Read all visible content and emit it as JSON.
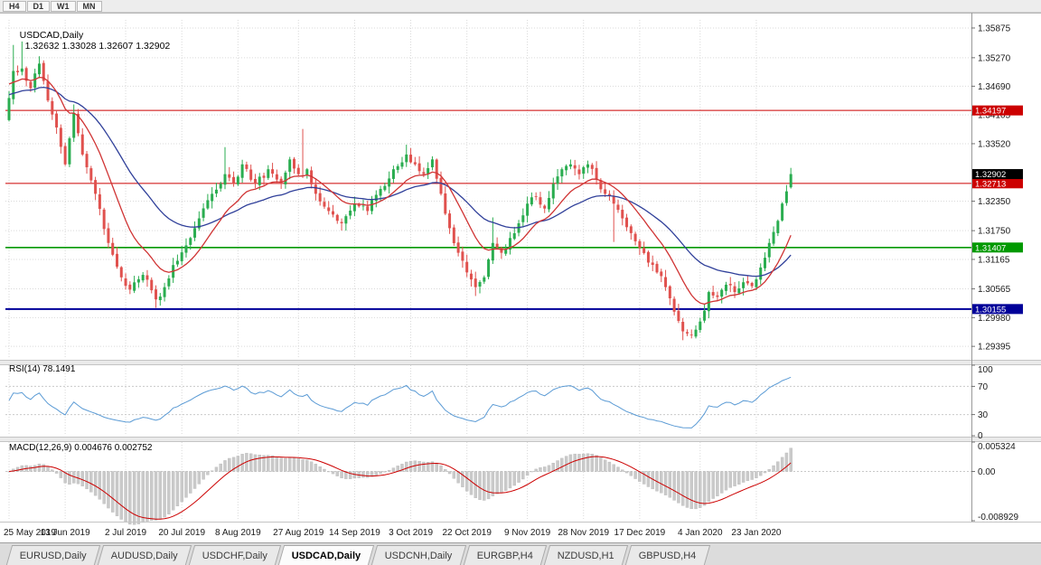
{
  "toolbar": {
    "timeframe_buttons": [
      "H4",
      "D1",
      "W1",
      "MN"
    ]
  },
  "main_chart": {
    "title_symbol": "USDCAD,Daily",
    "title_ohlc": "1.32632 1.33028 1.32607 1.32902",
    "price_axis_ticks": [
      "1.35875",
      "1.35270",
      "1.34690",
      "1.34105",
      "1.33520",
      "1.32350",
      "1.31750",
      "1.31165",
      "1.30565",
      "1.29980",
      "1.29395"
    ],
    "price_labels": [
      {
        "text": "1.34197",
        "color": "#cc0000",
        "type": "resistance-line"
      },
      {
        "text": "1.32713",
        "color": "#cc0000",
        "type": "resistance-line"
      },
      {
        "text": "1.31407",
        "color": "#009900",
        "type": "support-line"
      },
      {
        "text": "1.30155",
        "color": "#000099",
        "type": "support-line"
      },
      {
        "text": "1.32902",
        "color": "#000000",
        "type": "current-price"
      }
    ],
    "level_lines": [
      {
        "price": 1.34197,
        "color": "#cc0000",
        "width": 1
      },
      {
        "price": 1.32713,
        "color": "#cc0000",
        "width": 1
      },
      {
        "price": 1.31407,
        "color": "#009900",
        "width": 1.6
      },
      {
        "price": 1.30155,
        "color": "#000099",
        "width": 2
      }
    ],
    "date_axis": [
      "25 May 2019",
      "13 Jun 2019",
      "2 Jul 2019",
      "20 Jul 2019",
      "8 Aug 2019",
      "27 Aug 2019",
      "14 Sep 2019",
      "3 Oct 2019",
      "22 Oct 2019",
      "9 Nov 2019",
      "28 Nov 2019",
      "17 Dec 2019",
      "4 Jan 2020",
      "23 Jan 2020"
    ]
  },
  "rsi_panel": {
    "label": "RSI(14) 78.1491",
    "axis_ticks": [
      "100",
      "70",
      "30",
      "0"
    ],
    "last_value": 78.1491
  },
  "macd_panel": {
    "label": "MACD(12,26,9) 0.004676 0.002752",
    "axis_ticks": [
      "0.005324",
      "0.00",
      "-0.008929"
    ],
    "last_macd": 0.004676,
    "last_signal": 0.002752
  },
  "bottom_tabs": {
    "items": [
      "EURUSD,Daily",
      "AUDUSD,Daily",
      "USDCHF,Daily",
      "USDCAD,Daily",
      "USDCNH,Daily",
      "EURGBP,H4",
      "NZDUSD,H1",
      "GBPUSD,H4"
    ],
    "active": "USDCAD,Daily"
  },
  "chart_data": {
    "type": "candlestick",
    "symbol": "USDCAD",
    "timeframe": "Daily",
    "ohlc_last": {
      "open": 1.32632,
      "high": 1.33028,
      "low": 1.32607,
      "close": 1.32902
    },
    "visible_range": {
      "price_min": 1.2914,
      "price_max": 1.3604,
      "bars": 182
    },
    "date_tick_indices": [
      0,
      13,
      27,
      40,
      53,
      67,
      80,
      93,
      106,
      120,
      133,
      146,
      160,
      173
    ],
    "close_keyframes": [
      [
        0,
        1.3445
      ],
      [
        1,
        1.35
      ],
      [
        3,
        1.3505
      ],
      [
        5,
        1.3465
      ],
      [
        7,
        1.3515
      ],
      [
        9,
        1.344
      ],
      [
        11,
        1.3385
      ],
      [
        13,
        1.331
      ],
      [
        15,
        1.3415
      ],
      [
        17,
        1.333
      ],
      [
        20,
        1.325
      ],
      [
        23,
        1.315
      ],
      [
        26,
        1.308
      ],
      [
        28,
        1.3055
      ],
      [
        31,
        1.3085
      ],
      [
        34,
        1.3035
      ],
      [
        36,
        1.306
      ],
      [
        38,
        1.3105
      ],
      [
        41,
        1.3145
      ],
      [
        44,
        1.32
      ],
      [
        47,
        1.325
      ],
      [
        50,
        1.329
      ],
      [
        52,
        1.327
      ],
      [
        54,
        1.331
      ],
      [
        57,
        1.327
      ],
      [
        60,
        1.33
      ],
      [
        63,
        1.327
      ],
      [
        65,
        1.332
      ],
      [
        67,
        1.329
      ],
      [
        69,
        1.33
      ],
      [
        71,
        1.325
      ],
      [
        74,
        1.3215
      ],
      [
        77,
        1.319
      ],
      [
        80,
        1.323
      ],
      [
        83,
        1.3215
      ],
      [
        86,
        1.326
      ],
      [
        89,
        1.33
      ],
      [
        92,
        1.333
      ],
      [
        94,
        1.331
      ],
      [
        96,
        1.329
      ],
      [
        98,
        1.332
      ],
      [
        100,
        1.325
      ],
      [
        102,
        1.318
      ],
      [
        104,
        1.313
      ],
      [
        106,
        1.309
      ],
      [
        108,
        1.306
      ],
      [
        110,
        1.308
      ],
      [
        112,
        1.315
      ],
      [
        114,
        1.313
      ],
      [
        116,
        1.316
      ],
      [
        118,
        1.319
      ],
      [
        120,
        1.323
      ],
      [
        122,
        1.3245
      ],
      [
        124,
        1.322
      ],
      [
        126,
        1.327
      ],
      [
        128,
        1.33
      ],
      [
        130,
        1.331
      ],
      [
        132,
        1.329
      ],
      [
        134,
        1.331
      ],
      [
        136,
        1.328
      ],
      [
        138,
        1.325
      ],
      [
        140,
        1.323
      ],
      [
        142,
        1.32
      ],
      [
        144,
        1.317
      ],
      [
        146,
        1.314
      ],
      [
        148,
        1.311
      ],
      [
        150,
        1.309
      ],
      [
        152,
        1.306
      ],
      [
        154,
        1.301
      ],
      [
        156,
        1.297
      ],
      [
        158,
        1.2962
      ],
      [
        160,
        1.299
      ],
      [
        162,
        1.305
      ],
      [
        164,
        1.304
      ],
      [
        166,
        1.3065
      ],
      [
        168,
        1.305
      ],
      [
        170,
        1.307
      ],
      [
        172,
        1.3062
      ],
      [
        174,
        1.31
      ],
      [
        176,
        1.315
      ],
      [
        178,
        1.3195
      ],
      [
        180,
        1.3255
      ],
      [
        181,
        1.329
      ]
    ],
    "wick_extremes": [
      {
        "i": 1,
        "high": 1.3553
      },
      {
        "i": 3,
        "high": 1.356
      },
      {
        "i": 7,
        "high": 1.353
      },
      {
        "i": 15,
        "high": 1.3432
      },
      {
        "i": 34,
        "low": 1.3018
      },
      {
        "i": 50,
        "high": 1.3345
      },
      {
        "i": 68,
        "high": 1.3382
      },
      {
        "i": 92,
        "high": 1.335
      },
      {
        "i": 108,
        "low": 1.3042
      },
      {
        "i": 112,
        "high": 1.3202
      },
      {
        "i": 140,
        "low": 1.3152
      },
      {
        "i": 156,
        "low": 1.2952
      }
    ],
    "moving_averages": [
      {
        "name": "fast",
        "type": "ema",
        "period": 13,
        "color": "#d03434",
        "seed": 1.3478
      },
      {
        "name": "slow",
        "type": "ema",
        "period": 34,
        "color": "#30409a",
        "seed": 1.3452
      }
    ],
    "indicators": {
      "rsi": {
        "period": 14,
        "last": 78.1491,
        "levels": [
          70,
          30
        ],
        "range": [
          0,
          100
        ],
        "color": "#5b9bd5"
      },
      "macd": {
        "fast": 12,
        "slow": 26,
        "signal": 9,
        "last_macd": 0.004676,
        "last_signal": 0.002752,
        "range": [
          -0.008929,
          0.005324
        ],
        "histogram_color": "#cacaca",
        "signal_color": "#cc0000"
      }
    },
    "colors": {
      "bull": "#2aad50",
      "bear": "#e0514e",
      "grid": "#d9d9d9",
      "background": "#ffffff"
    }
  }
}
